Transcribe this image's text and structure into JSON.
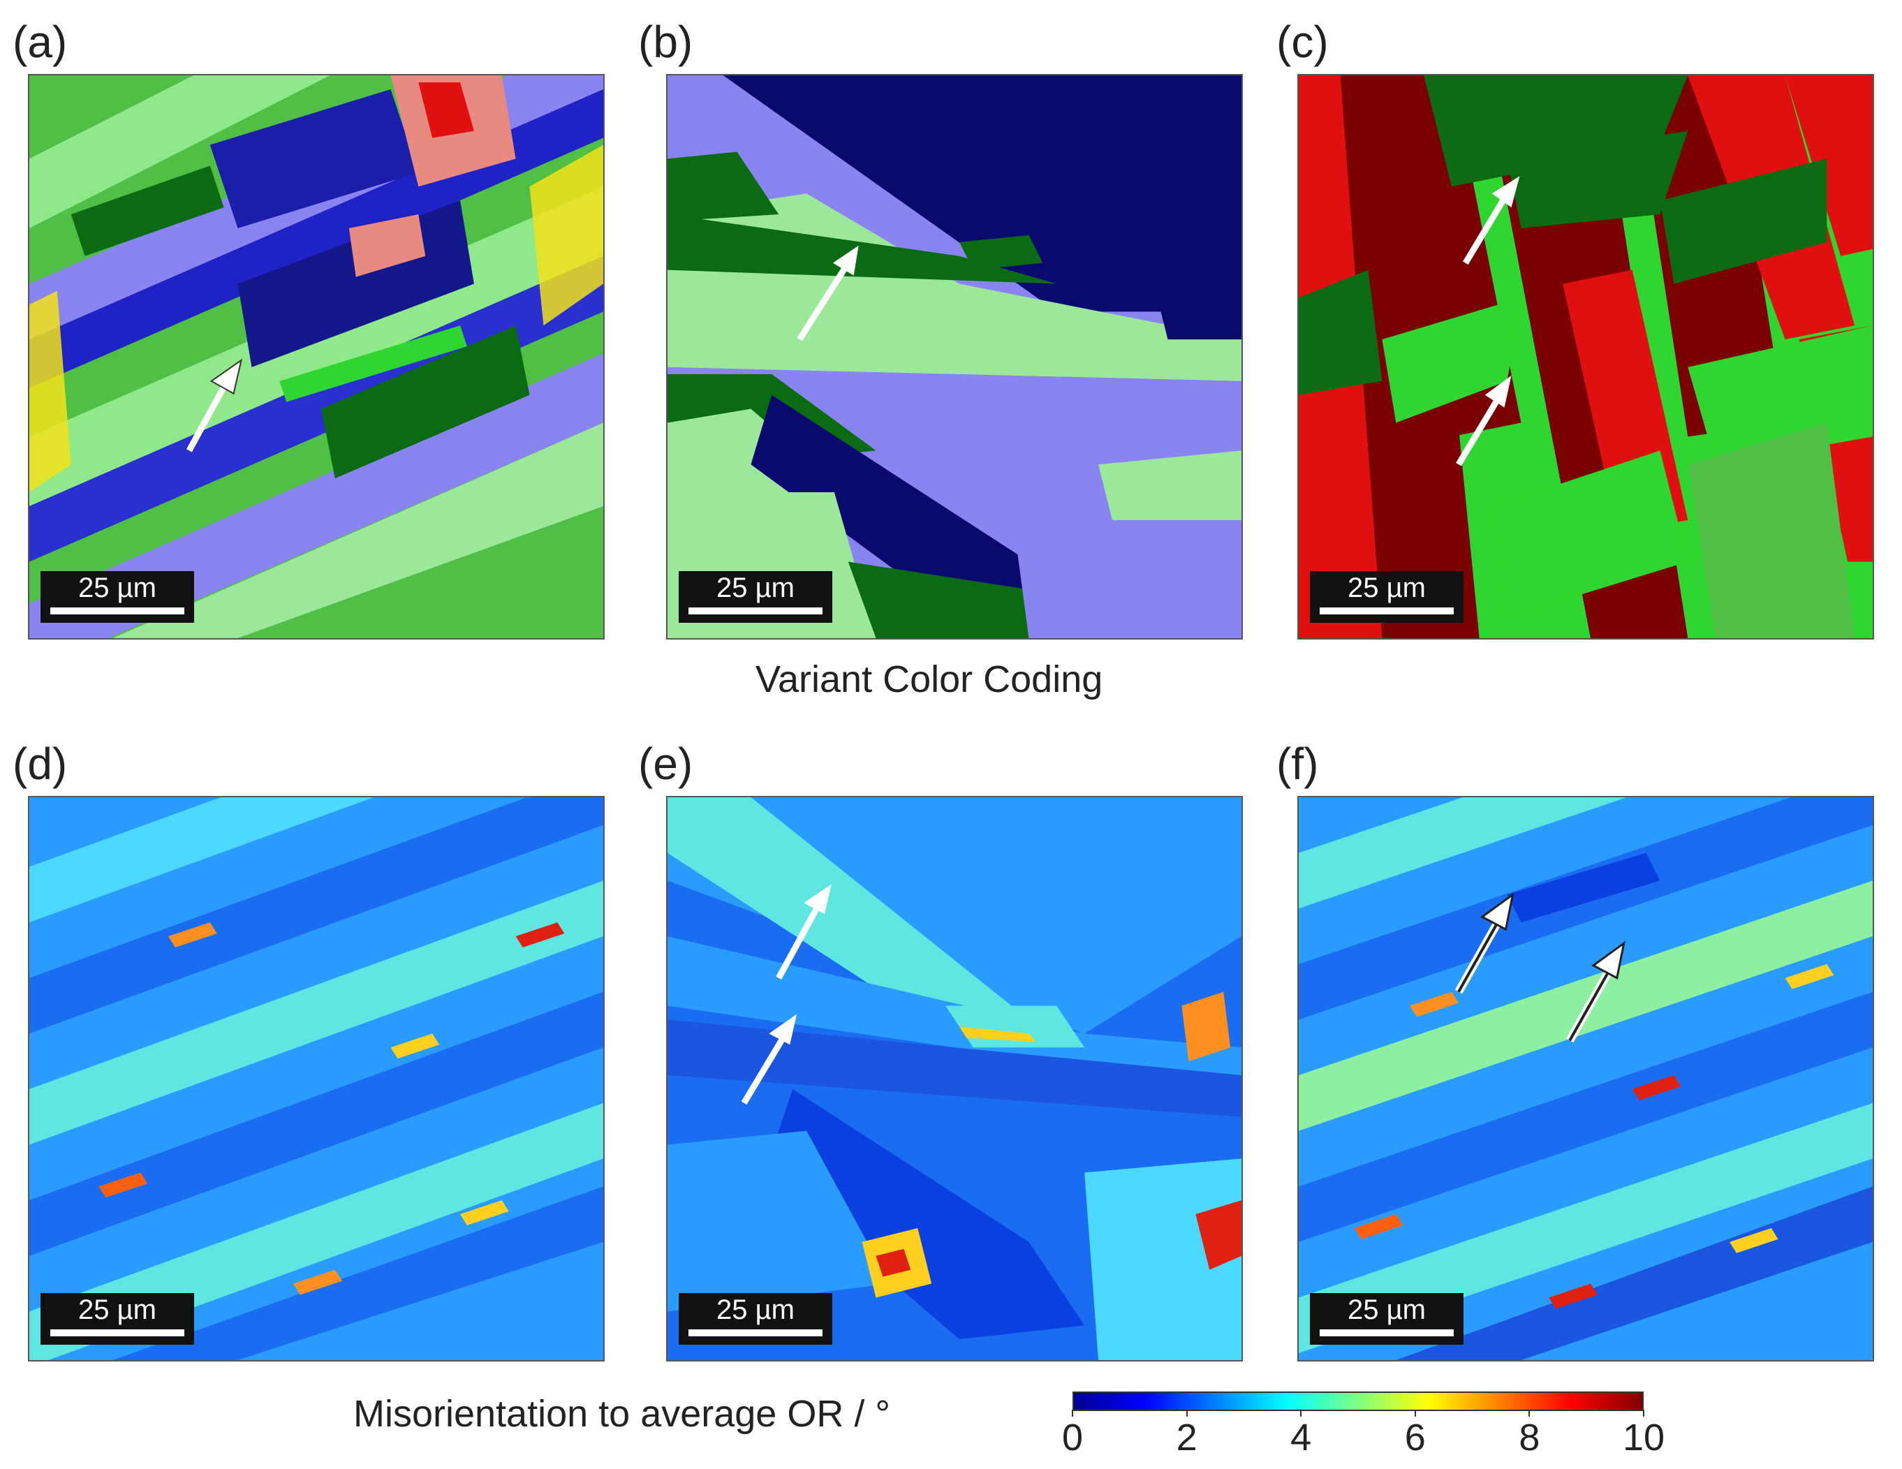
{
  "panels": [
    {
      "label": "(a)",
      "scale": "25 µm"
    },
    {
      "label": "(b)",
      "scale": "25 µm"
    },
    {
      "label": "(c)",
      "scale": "25 µm"
    },
    {
      "label": "(d)",
      "scale": "25 µm"
    },
    {
      "label": "(e)",
      "scale": "25 µm"
    },
    {
      "label": "(f)",
      "scale": "25 µm"
    }
  ],
  "captions": {
    "top": "Variant Color Coding",
    "bottom": "Misorientation to average OR / °"
  },
  "colorbar": {
    "ticks": [
      "0",
      "2",
      "4",
      "6",
      "8",
      "10"
    ],
    "min": 0,
    "max": 10,
    "colormap": "jet"
  },
  "colors": {
    "variant_navy": "#0a0a6e",
    "variant_lavender": "#8a84f0",
    "variant_light_green": "#9be89b",
    "variant_dark_green": "#0b6b12",
    "variant_green": "#2fd62f",
    "variant_red": "#e01010",
    "variant_dark_red": "#7a0000",
    "variant_yellow": "#f2e21a",
    "variant_salmon": "#e88a80"
  }
}
